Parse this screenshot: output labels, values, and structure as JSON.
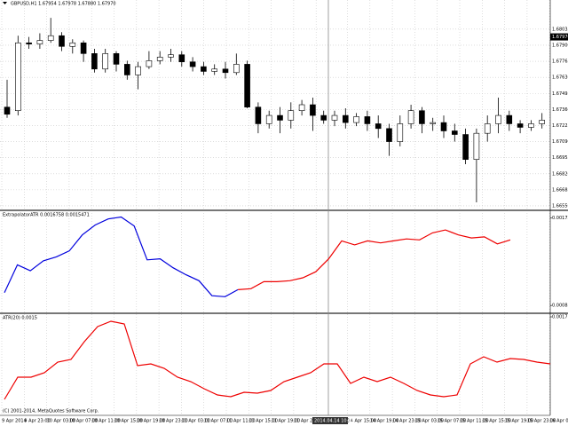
{
  "chart_data": [
    {
      "type": "candlestick",
      "title": "GBPUSD,H1 1.67954 1.67978 1.67880 1.67970",
      "open": [
        1.6738,
        1.6735,
        1.6792,
        1.6791,
        1.6794,
        1.6798,
        1.6789,
        1.6792,
        1.6783,
        1.677,
        1.6783,
        1.6774,
        1.6765,
        1.6772,
        1.6777,
        1.678,
        1.6782,
        1.6776,
        1.6772,
        1.6768,
        1.677,
        1.6767,
        1.6774,
        1.6738,
        1.6724,
        1.6731,
        1.6727,
        1.6735,
        1.674,
        1.6731,
        1.6727,
        1.6731,
        1.6725,
        1.673,
        1.6724,
        1.672,
        1.6709,
        1.6724,
        1.6735,
        1.6724,
        1.6725,
        1.6718,
        1.6715,
        1.6694,
        1.6716,
        1.6724,
        1.6731,
        1.6724,
        1.6721,
        1.6724
      ],
      "high": [
        1.6761,
        1.6798,
        1.6797,
        1.68,
        1.6813,
        1.6801,
        1.6795,
        1.6794,
        1.6787,
        1.6787,
        1.6785,
        1.6777,
        1.6776,
        1.6785,
        1.6785,
        1.6787,
        1.6785,
        1.678,
        1.6776,
        1.6774,
        1.6776,
        1.6783,
        1.6777,
        1.6742,
        1.6735,
        1.6738,
        1.6742,
        1.6744,
        1.6746,
        1.6735,
        1.6735,
        1.6737,
        1.6733,
        1.6735,
        1.6731,
        1.6724,
        1.6731,
        1.674,
        1.6738,
        1.6729,
        1.6731,
        1.6724,
        1.672,
        1.672,
        1.6731,
        1.6746,
        1.6735,
        1.6727,
        1.6727,
        1.6733
      ],
      "low": [
        1.6729,
        1.6731,
        1.6787,
        1.6787,
        1.6792,
        1.6785,
        1.6783,
        1.6776,
        1.6767,
        1.6767,
        1.6768,
        1.6761,
        1.6753,
        1.677,
        1.6774,
        1.6776,
        1.6772,
        1.6768,
        1.6765,
        1.6765,
        1.6762,
        1.6765,
        1.6737,
        1.6716,
        1.672,
        1.6716,
        1.672,
        1.6731,
        1.6718,
        1.6724,
        1.6722,
        1.672,
        1.6722,
        1.6718,
        1.6712,
        1.6697,
        1.6705,
        1.672,
        1.6716,
        1.6718,
        1.6712,
        1.6709,
        1.669,
        1.6658,
        1.6709,
        1.6716,
        1.6718,
        1.6716,
        1.6718,
        1.672
      ],
      "close": [
        1.6732,
        1.6792,
        1.6791,
        1.6794,
        1.6798,
        1.6789,
        1.6792,
        1.6783,
        1.677,
        1.6783,
        1.6774,
        1.6765,
        1.6772,
        1.6777,
        1.678,
        1.6782,
        1.6776,
        1.6772,
        1.6768,
        1.677,
        1.6767,
        1.6774,
        1.6738,
        1.6724,
        1.6731,
        1.6727,
        1.6735,
        1.674,
        1.6731,
        1.6727,
        1.6731,
        1.6725,
        1.673,
        1.6724,
        1.672,
        1.6709,
        1.6724,
        1.6735,
        1.6724,
        1.6725,
        1.6718,
        1.6715,
        1.6694,
        1.6716,
        1.6724,
        1.6731,
        1.6724,
        1.6721,
        1.6724,
        1.6727
      ],
      "ylim": [
        1.6652,
        1.6828
      ],
      "yticks": [
        {
          "value": 1.68035,
          "label": "1.68035"
        },
        {
          "value": 1.679,
          "label": "1.67900"
        },
        {
          "value": 1.67765,
          "label": "1.67765"
        },
        {
          "value": 1.6763,
          "label": "1.67630"
        },
        {
          "value": 1.67495,
          "label": "1.67495"
        },
        {
          "value": 1.6736,
          "label": "1.67360"
        },
        {
          "value": 1.67225,
          "label": "1.67225"
        },
        {
          "value": 1.6709,
          "label": "1.67090"
        },
        {
          "value": 1.66955,
          "label": "1.66955"
        },
        {
          "value": 1.6682,
          "label": "1.66820"
        },
        {
          "value": 1.66685,
          "label": "1.66685"
        },
        {
          "value": 1.6655,
          "label": "1.66550"
        }
      ],
      "last_price": {
        "value": 1.6797,
        "label": "1.67970"
      },
      "grid": true
    },
    {
      "type": "line",
      "title": "ExtrapolatorATR 0.0016758 0.0015471",
      "series": [
        {
          "color": "#0000dd",
          "values": [
            0.00098,
            0.00126,
            0.0012,
            0.0013,
            0.00134,
            0.0014,
            0.00156,
            0.00166,
            0.00172,
            0.00174,
            0.00165,
            0.00131,
            0.00132,
            0.00123,
            0.00116,
            0.0011,
            0.00095,
            0.00094,
            0.00101,
            null,
            null,
            null,
            null,
            null,
            null,
            null,
            null,
            null,
            null,
            null,
            null,
            null,
            null,
            null,
            null,
            null,
            null,
            null,
            null,
            null
          ]
        },
        {
          "color": "#ee0000",
          "values": [
            null,
            null,
            null,
            null,
            null,
            null,
            null,
            null,
            null,
            null,
            null,
            null,
            null,
            null,
            null,
            null,
            null,
            null,
            0.00101,
            0.00102,
            0.00109,
            0.00109,
            0.0011,
            0.00113,
            0.00119,
            0.00132,
            0.0015,
            0.00146,
            0.0015,
            0.00148,
            0.0015,
            0.00152,
            0.00151,
            0.00158,
            0.00161,
            0.00156,
            0.00153,
            0.00154,
            0.00147,
            0.00151
          ]
        }
      ],
      "ylim": [
        0.0008,
        0.00178
      ],
      "yticks": [
        0.001729,
        0.000852
      ]
    },
    {
      "type": "line",
      "title": "ATR(20) 0.0015",
      "series": [
        {
          "color": "#ee0000",
          "values": [
            0.00077,
            0.00102,
            0.00102,
            0.00107,
            0.00119,
            0.00122,
            0.00142,
            0.00159,
            0.00165,
            0.00162,
            0.00115,
            0.00117,
            0.00112,
            0.00102,
            0.00097,
            0.00089,
            0.00082,
            0.0008,
            0.00085,
            0.00084,
            0.00087,
            0.00097,
            0.00102,
            0.00107,
            0.00117,
            0.00117,
            0.00095,
            0.00102,
            0.00097,
            0.00102,
            0.00095,
            0.00087,
            0.00082,
            0.0008,
            0.00082,
            0.00117,
            0.00125,
            0.00119,
            0.00123,
            0.00122,
            0.00119,
            0.00117
          ]
        }
      ],
      "ylim": [
        0.0006,
        0.0017
      ],
      "yticks": [
        0.0017
      ]
    }
  ],
  "time_axis": [
    "9 Apr 2014",
    "9 Apr 23:00",
    "10 Apr 03:00",
    "10 Apr 07:00",
    "10 Apr 11:00",
    "10 Apr 15:00",
    "10 Apr 19:00",
    "10 Apr 23:00",
    "11 Apr 03:00",
    "11 Apr 07:00",
    "11 Apr 11:00",
    "11 Apr 15:00",
    "11 Apr 19:00",
    "11 Apr 23:00",
    "14 Apr 03:00",
    "14 Apr 15:00",
    "14 Apr 19:00",
    "14 Apr 23:00",
    "15 Apr 03:00",
    "15 Apr 07:00",
    "15 Apr 11:00",
    "15 Apr 15:00",
    "15 Apr 19:00",
    "15 Apr 23:00",
    "16 Apr 03:00"
  ],
  "crosshair_time": "2014.04.14 10:00",
  "copyright": "(C) 2001-2014, MetaQuotes Software Corp."
}
